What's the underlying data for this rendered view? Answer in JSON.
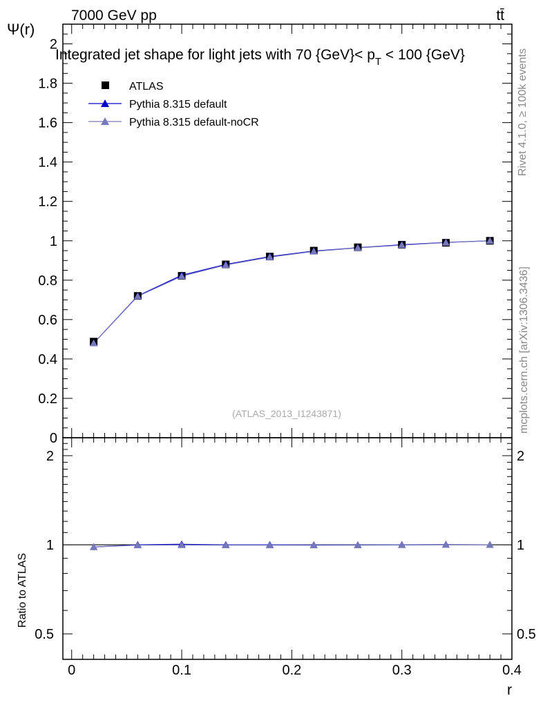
{
  "header": {
    "energy_label": "7000 GeV pp",
    "process_label": "tt̄"
  },
  "side": {
    "rivet_label": "Rivet 4.1.0, ≥ 100k events",
    "mcplots_label": "mcplots.cern.ch [arXiv:1306.3436]"
  },
  "watermark": "(ATLAS_2013_I1243871)",
  "colors": {
    "atlas": "#000000",
    "default": "#0000cc",
    "noCR": "#7777bb",
    "ratio_ref": "#000000"
  },
  "chart_data": [
    {
      "type": "line",
      "title_prefix": "Integrated jet shape for light jets with 70 {GeV}< p",
      "title_sub": "T",
      "title_suffix": " < 100 {GeV}",
      "ylabel": "Ψ(r)",
      "xlabel": "",
      "xlim": [
        -0.008,
        0.4
      ],
      "ylim": [
        0,
        2.1
      ],
      "yticks": [
        0,
        0.2,
        0.4,
        0.6,
        0.8,
        1,
        1.2,
        1.4,
        1.6,
        1.8,
        2
      ],
      "ytick_labels": [
        "0",
        "0.2",
        "0.4",
        "0.6",
        "0.8",
        "1",
        "1.2",
        "1.4",
        "1.6",
        "1.8",
        "2"
      ],
      "x": [
        0.02,
        0.06,
        0.1,
        0.14,
        0.18,
        0.22,
        0.26,
        0.3,
        0.34,
        0.38
      ],
      "legend": [
        "ATLAS",
        "Pythia 8.315 default",
        "Pythia 8.315 default-noCR"
      ],
      "series": [
        {
          "name": "ATLAS",
          "values": [
            0.488,
            0.72,
            0.822,
            0.88,
            0.92,
            0.95,
            0.967,
            0.98,
            0.99,
            1.0
          ]
        },
        {
          "name": "Pythia 8.315 default",
          "values": [
            0.48,
            0.72,
            0.825,
            0.88,
            0.92,
            0.948,
            0.965,
            0.98,
            0.992,
            1.0
          ]
        },
        {
          "name": "Pythia 8.315 default-noCR",
          "values": [
            0.48,
            0.718,
            0.82,
            0.877,
            0.917,
            0.946,
            0.964,
            0.978,
            0.991,
            1.0
          ]
        }
      ]
    },
    {
      "type": "line",
      "ylabel": "Ratio to ATLAS",
      "xlabel": "r",
      "xlim": [
        -0.008,
        0.4
      ],
      "ylim": [
        0.41,
        2.3
      ],
      "yscale": "log",
      "yticks_major": [
        0.5,
        1,
        2
      ],
      "ytick_labels": [
        "0.5",
        "1",
        "2"
      ],
      "xticks": [
        0,
        0.1,
        0.2,
        0.3,
        0.4
      ],
      "xtick_labels": [
        "0",
        "0.1",
        "0.2",
        "0.3",
        "0.4"
      ],
      "x": [
        0.02,
        0.06,
        0.1,
        0.14,
        0.18,
        0.22,
        0.26,
        0.3,
        0.34,
        0.38
      ],
      "series": [
        {
          "name": "Pythia 8.315 default",
          "values": [
            0.983,
            1.0,
            1.004,
            1.0,
            1.0,
            0.998,
            0.998,
            1.0,
            1.002,
            1.0
          ]
        },
        {
          "name": "Pythia 8.315 default-noCR",
          "values": [
            0.983,
            0.997,
            0.998,
            0.997,
            0.997,
            0.996,
            0.997,
            0.998,
            1.001,
            1.0
          ]
        }
      ]
    }
  ]
}
